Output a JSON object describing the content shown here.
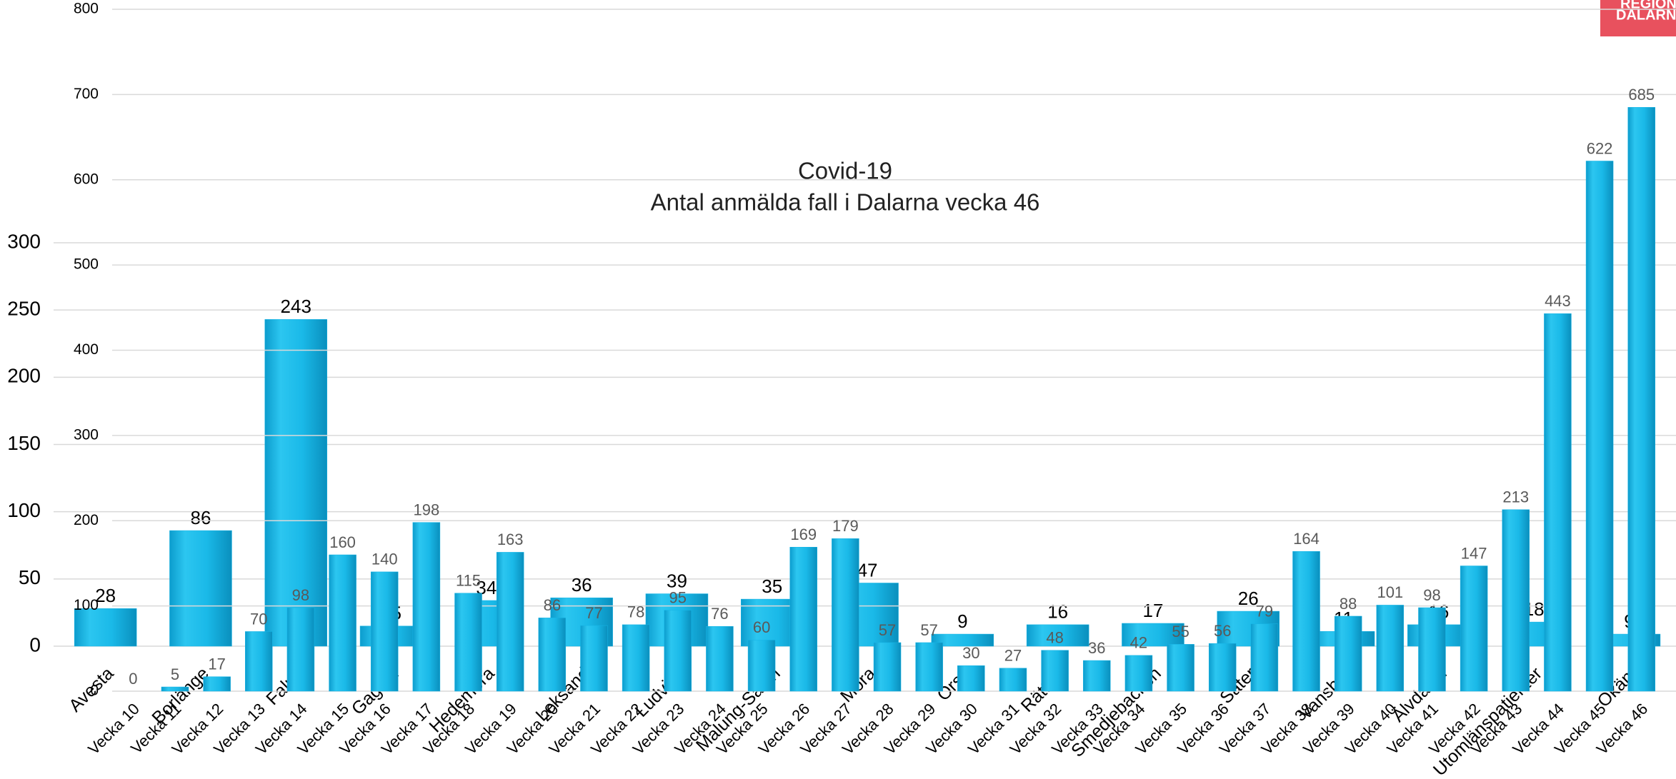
{
  "logo": [
    "REGION",
    "DALARNA"
  ],
  "chart_data": [
    {
      "type": "bar",
      "categories": [
        "Vecka 10",
        "Vecka 11",
        "Vecka 12",
        "Vecka 13",
        "Vecka 14",
        "Vecka 15",
        "Vecka 16",
        "Vecka 17",
        "Vecka 18",
        "Vecka 19",
        "Vecka 20",
        "Vecka 21",
        "Vecka 22",
        "Vecka 23",
        "Vecka 24",
        "Vecka 25",
        "Vecka 26",
        "Vecka 27",
        "Vecka 28",
        "Vecka 29",
        "Vecka 30",
        "Vecka 31",
        "Vecka 32",
        "Vecka 33",
        "Vecka 34",
        "Vecka 35",
        "Vecka 36",
        "Vecka 37",
        "Vecka 38",
        "Vecka 39",
        "Vecka 40",
        "Vecka 41",
        "Vecka 42",
        "Vecka 43",
        "Vecka 44",
        "Vecka 45",
        "Vecka 46"
      ],
      "values": [
        0,
        5,
        17,
        70,
        98,
        160,
        140,
        198,
        115,
        163,
        86,
        77,
        78,
        95,
        76,
        60,
        169,
        179,
        57,
        57,
        30,
        27,
        48,
        36,
        42,
        55,
        56,
        79,
        164,
        88,
        101,
        98,
        147,
        213,
        443,
        622,
        685
      ],
      "color": "#17b5e6",
      "ylim": [
        0,
        800
      ],
      "yticks": [
        0,
        100,
        200,
        300,
        400,
        500,
        600,
        700,
        800
      ],
      "grid": true
    },
    {
      "type": "bar",
      "title": "Covid-19",
      "subtitle": "Antal anmälda fall i Dalarna vecka 46",
      "categories": [
        "Avesta",
        "Borlänge",
        "Falun",
        "Gagnef",
        "Hedemora",
        "Leksand",
        "Ludvika",
        "Malung-Sälen",
        "Mora",
        "Orsa",
        "Rättvik",
        "Smedjebacken",
        "Säter",
        "Vansbro",
        "Älvdalen",
        "Utomlänspatienter",
        "Okänt"
      ],
      "values": [
        28,
        86,
        243,
        15,
        34,
        36,
        39,
        35,
        47,
        9,
        16,
        17,
        26,
        11,
        16,
        18,
        9
      ],
      "color": "#17b5e6",
      "ylim": [
        0,
        300
      ],
      "yticks": [
        0,
        50,
        100,
        150,
        200,
        250,
        300
      ],
      "grid": true
    }
  ]
}
